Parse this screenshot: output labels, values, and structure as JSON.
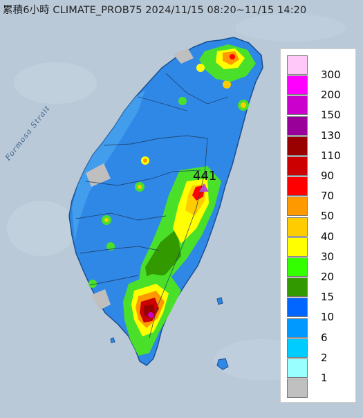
{
  "title": "累積6小時 CLIMATE_PROB75 2024/11/15 08:20~11/15 14:20",
  "sea_label": "Formosa Strait",
  "max_value_label": "441",
  "colors": {
    "ocean": "#b9c9d8",
    "land_base": "#2f87e6",
    "mountain_rain": "#4ae02a"
  },
  "legend": {
    "items": [
      {
        "label": "300",
        "color": "#ffc8f8"
      },
      {
        "label": "200",
        "color": "#ff00ff"
      },
      {
        "label": "150",
        "color": "#cc00cc"
      },
      {
        "label": "130",
        "color": "#990099"
      },
      {
        "label": "110",
        "color": "#990000"
      },
      {
        "label": "90",
        "color": "#cc0000"
      },
      {
        "label": "70",
        "color": "#ff0000"
      },
      {
        "label": "50",
        "color": "#ff9900"
      },
      {
        "label": "40",
        "color": "#ffcc00"
      },
      {
        "label": "30",
        "color": "#ffff00"
      },
      {
        "label": "20",
        "color": "#33ff00"
      },
      {
        "label": "15",
        "color": "#339900"
      },
      {
        "label": "10",
        "color": "#0066ff"
      },
      {
        "label": "6",
        "color": "#0099ff"
      },
      {
        "label": "2",
        "color": "#00ccff"
      },
      {
        "label": "1",
        "color": "#99ffff"
      },
      {
        "label": "",
        "color": "#c0c0c0"
      }
    ]
  }
}
